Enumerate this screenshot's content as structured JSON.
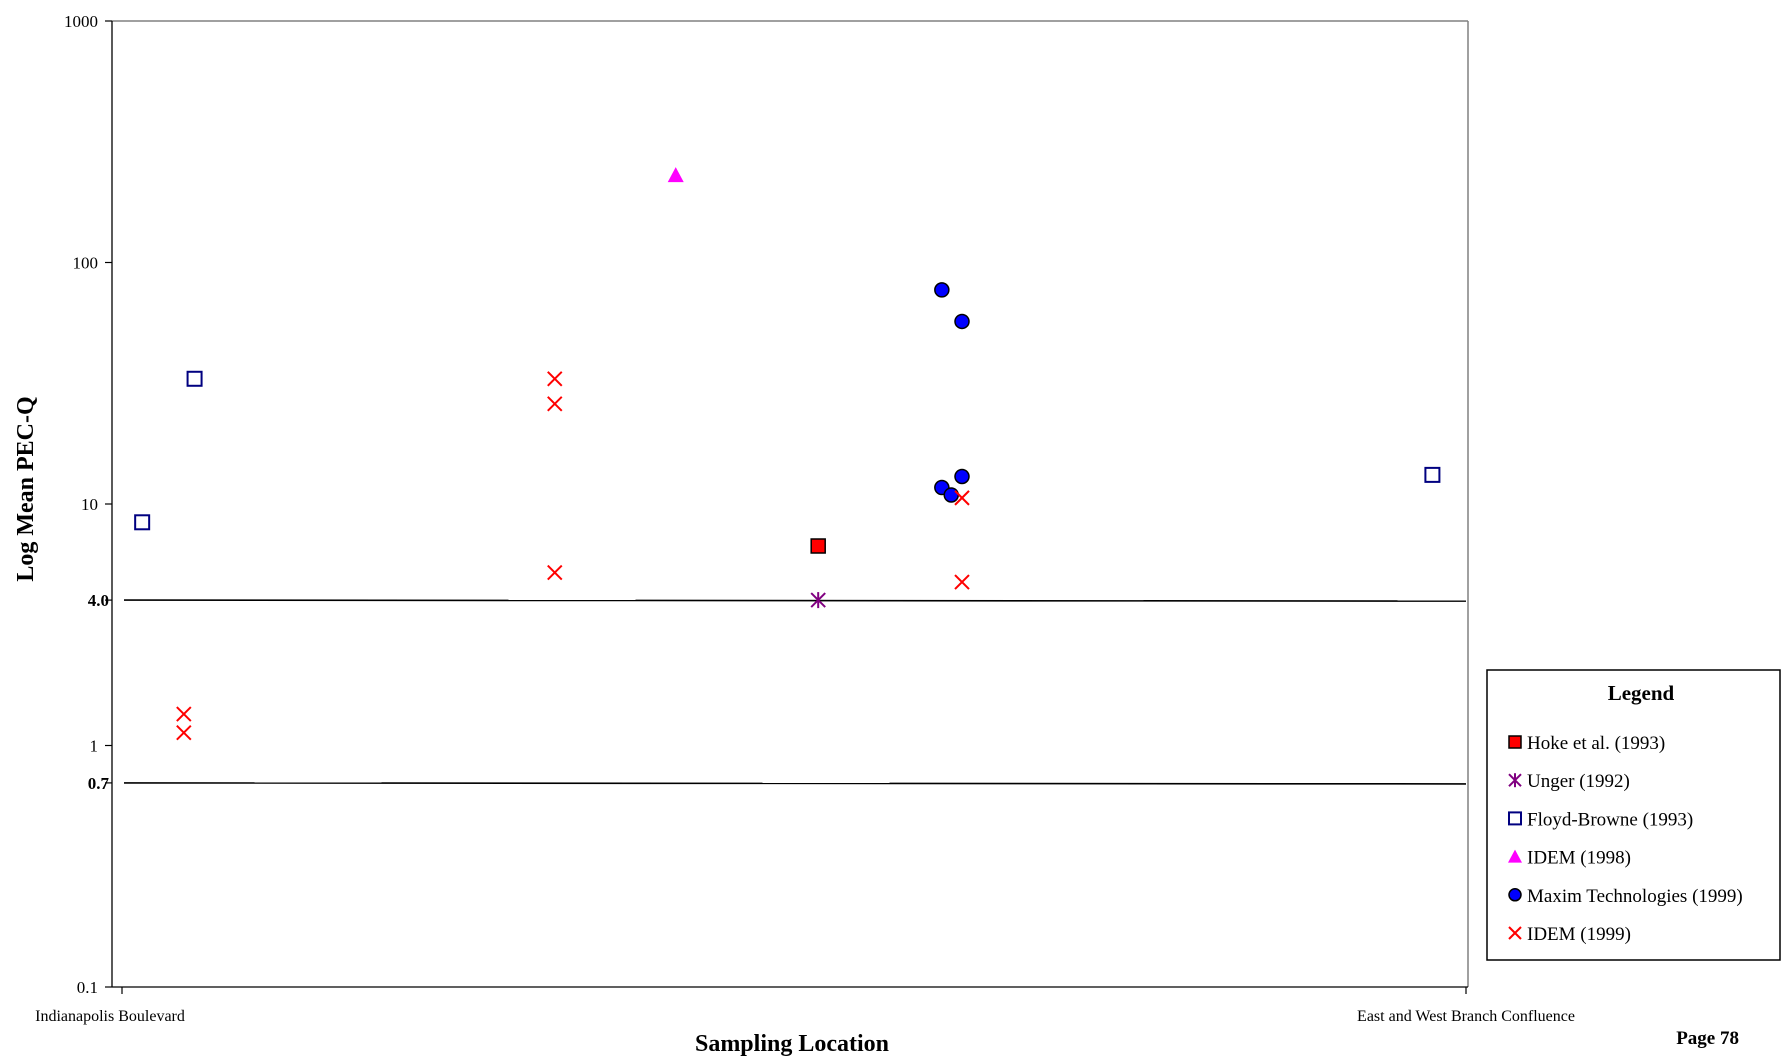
{
  "page": {
    "page_label": "Page 78"
  },
  "chart_data": {
    "type": "scatter",
    "title": "",
    "xlabel": "Sampling Location",
    "ylabel": "Log Mean PEC-Q",
    "y_scale": "log",
    "ylim": [
      0.1,
      1000
    ],
    "xlim": [
      0,
      1
    ],
    "y_ticks": [
      "0.1",
      "1",
      "10",
      "100",
      "1000"
    ],
    "x_categories": [
      "Indianapolis Boulevard",
      "East and West Branch Confluence"
    ],
    "reference_lines": [
      {
        "label": "4.0",
        "value": 4.0
      },
      {
        "label": "0.7",
        "value": 0.7
      }
    ],
    "grid": false,
    "legend": {
      "title": "Legend",
      "placement": "right"
    },
    "series": [
      {
        "name": "Hoke et al. (1993)",
        "marker": "square-filled",
        "color": "#ff0000",
        "points": [
          {
            "x": 0.518,
            "y": 6.7
          }
        ]
      },
      {
        "name": "Unger (1992)",
        "marker": "asterisk",
        "color": "#800080",
        "points": [
          {
            "x": 0.518,
            "y": 4.0
          }
        ]
      },
      {
        "name": "Floyd-Browne (1993)",
        "marker": "square-open",
        "color": "#000080",
        "points": [
          {
            "x": 0.015,
            "y": 8.4
          },
          {
            "x": 0.054,
            "y": 33
          },
          {
            "x": 0.975,
            "y": 13.2
          }
        ]
      },
      {
        "name": "IDEM (1998)",
        "marker": "triangle",
        "color": "#ff00ff",
        "points": [
          {
            "x": 0.412,
            "y": 230
          }
        ]
      },
      {
        "name": "Maxim Technologies (1999)",
        "marker": "circle",
        "color": "#0000ff",
        "points": [
          {
            "x": 0.61,
            "y": 77
          },
          {
            "x": 0.625,
            "y": 57
          },
          {
            "x": 0.61,
            "y": 11.7
          },
          {
            "x": 0.617,
            "y": 10.9
          },
          {
            "x": 0.625,
            "y": 13
          }
        ]
      },
      {
        "name": "IDEM (1999)",
        "marker": "x",
        "color": "#ff0000",
        "points": [
          {
            "x": 0.046,
            "y": 1.35
          },
          {
            "x": 0.046,
            "y": 1.13
          },
          {
            "x": 0.322,
            "y": 33
          },
          {
            "x": 0.322,
            "y": 26
          },
          {
            "x": 0.322,
            "y": 5.2
          },
          {
            "x": 0.625,
            "y": 10.6
          },
          {
            "x": 0.625,
            "y": 4.75
          }
        ]
      }
    ]
  }
}
